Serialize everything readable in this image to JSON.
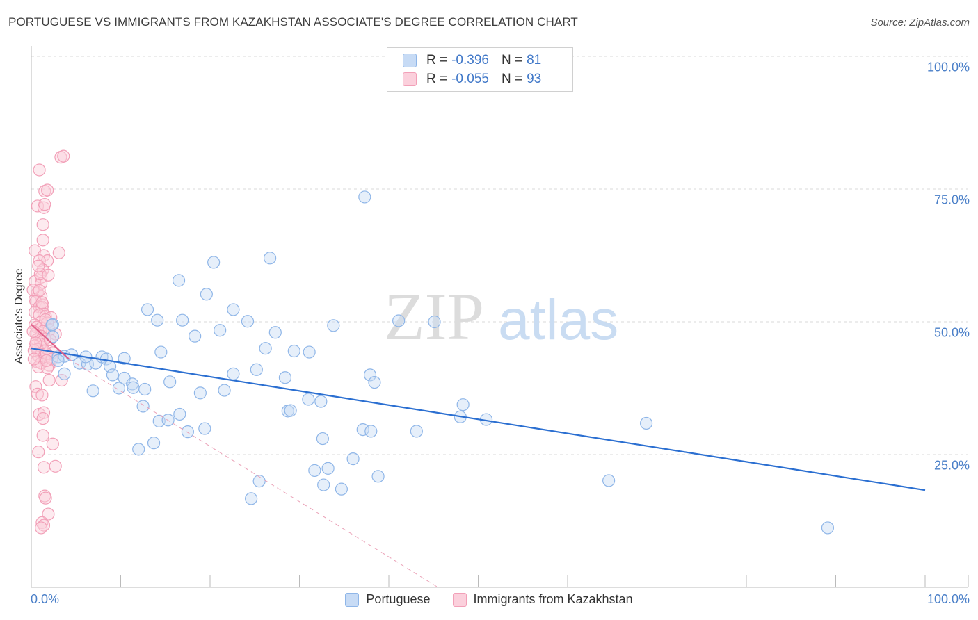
{
  "title": "PORTUGUESE VS IMMIGRANTS FROM KAZAKHSTAN ASSOCIATE'S DEGREE CORRELATION CHART",
  "source": "Source: ZipAtlas.com",
  "watermark": {
    "part1": "ZIP",
    "part2": "atlas"
  },
  "legend": {
    "rows": [
      {
        "r_label": "R =",
        "r_value": "-0.396",
        "n_label": "N =",
        "n_value": "81",
        "color": "#8fb6e8",
        "fill": "#c7dbf5"
      },
      {
        "r_label": "R =",
        "r_value": "-0.055",
        "n_label": "N =",
        "n_value": "93",
        "color": "#f2a0b8",
        "fill": "#fbd0dc"
      }
    ]
  },
  "bottom_legend": [
    {
      "label": "Portuguese",
      "color": "#8fb6e8",
      "fill": "#c7dbf5"
    },
    {
      "label": "Immigrants from Kazakhstan",
      "color": "#f2a0b8",
      "fill": "#fbd0dc"
    }
  ],
  "chart_data": {
    "type": "scatter",
    "title": "PORTUGUESE VS IMMIGRANTS FROM KAZAKHSTAN ASSOCIATE'S DEGREE CORRELATION CHART",
    "xlabel": "",
    "ylabel": "Associate's Degree",
    "xlim": [
      0,
      100
    ],
    "ylim": [
      0,
      100
    ],
    "x_tick_labels": [
      {
        "value": 0,
        "label": "0.0%"
      },
      {
        "value": 100,
        "label": "100.0%"
      }
    ],
    "y_tick_labels": [
      {
        "value": 100,
        "label": "100.0%"
      },
      {
        "value": 75,
        "label": "75.0%"
      },
      {
        "value": 50,
        "label": "50.0%"
      },
      {
        "value": 25,
        "label": "25.0%"
      }
    ],
    "grid": true,
    "series": [
      {
        "name": "Portuguese",
        "color": "#8fb6e8",
        "fill": "#c7dbf5",
        "trend": {
          "x1": 0,
          "y1": 45.0,
          "x2": 100,
          "y2": 18.3,
          "color": "#2b6fd1",
          "style": "solid"
        },
        "points": [
          [
            2.4,
            49.5
          ],
          [
            2.3,
            49.4
          ],
          [
            2.4,
            47.2
          ],
          [
            3.0,
            43.4
          ],
          [
            3.7,
            43.5
          ],
          [
            4.5,
            43.8
          ],
          [
            3.7,
            40.2
          ],
          [
            3.0,
            42.7
          ],
          [
            5.4,
            42.2
          ],
          [
            6.3,
            42.0
          ],
          [
            6.1,
            43.4
          ],
          [
            7.2,
            42.2
          ],
          [
            7.9,
            43.4
          ],
          [
            8.4,
            43.0
          ],
          [
            10.4,
            43.1
          ],
          [
            8.8,
            41.6
          ],
          [
            9.1,
            40.0
          ],
          [
            9.8,
            37.5
          ],
          [
            10.4,
            39.4
          ],
          [
            6.9,
            37.0
          ],
          [
            11.3,
            38.3
          ],
          [
            11.4,
            37.6
          ],
          [
            12.7,
            37.3
          ],
          [
            12.5,
            34.1
          ],
          [
            12.0,
            26.0
          ],
          [
            13.7,
            27.2
          ],
          [
            14.3,
            31.3
          ],
          [
            15.3,
            31.5
          ],
          [
            15.5,
            38.7
          ],
          [
            16.6,
            32.6
          ],
          [
            17.5,
            29.3
          ],
          [
            18.9,
            36.6
          ],
          [
            19.4,
            29.9
          ],
          [
            13.0,
            52.3
          ],
          [
            14.1,
            50.3
          ],
          [
            14.5,
            44.3
          ],
          [
            16.5,
            57.8
          ],
          [
            16.9,
            50.3
          ],
          [
            18.3,
            47.3
          ],
          [
            19.6,
            55.2
          ],
          [
            20.4,
            61.2
          ],
          [
            21.1,
            48.4
          ],
          [
            21.6,
            37.1
          ],
          [
            22.6,
            40.2
          ],
          [
            22.6,
            52.3
          ],
          [
            24.2,
            50.1
          ],
          [
            25.2,
            41.0
          ],
          [
            26.2,
            45.0
          ],
          [
            26.7,
            62.0
          ],
          [
            27.3,
            48.0
          ],
          [
            28.4,
            39.5
          ],
          [
            29.4,
            44.5
          ],
          [
            28.7,
            33.2
          ],
          [
            29.0,
            33.3
          ],
          [
            31.1,
            44.3
          ],
          [
            31.0,
            35.4
          ],
          [
            32.4,
            35.0
          ],
          [
            32.6,
            28.0
          ],
          [
            31.7,
            22.0
          ],
          [
            33.2,
            22.4
          ],
          [
            33.8,
            49.3
          ],
          [
            32.7,
            19.3
          ],
          [
            34.7,
            18.5
          ],
          [
            25.5,
            20.0
          ],
          [
            24.6,
            16.7
          ],
          [
            36.0,
            24.2
          ],
          [
            37.1,
            29.7
          ],
          [
            38.0,
            29.4
          ],
          [
            37.9,
            40.0
          ],
          [
            38.4,
            38.6
          ],
          [
            38.8,
            20.9
          ],
          [
            41.1,
            50.2
          ],
          [
            43.1,
            29.4
          ],
          [
            45.1,
            50.0
          ],
          [
            48.3,
            34.4
          ],
          [
            48.0,
            32.1
          ],
          [
            50.9,
            31.6
          ],
          [
            37.3,
            73.5
          ],
          [
            68.8,
            30.9
          ],
          [
            64.6,
            20.1
          ],
          [
            89.1,
            11.2
          ]
        ]
      },
      {
        "name": "Immigrants from Kazakhstan",
        "color": "#f2a0b8",
        "fill": "#fbd0dc",
        "trend": {
          "x1": 0,
          "y1": 49.5,
          "x2": 4.2,
          "y2": 43.0,
          "color": "#e0608a",
          "style": "solid"
        },
        "trend_extension": {
          "x1": 4.2,
          "x2": 45.5,
          "y2": 0,
          "color": "#eaa0b6",
          "style": "dashed"
        },
        "points": [
          [
            3.3,
            81.0
          ],
          [
            3.6,
            81.2
          ],
          [
            0.9,
            78.6
          ],
          [
            1.5,
            74.6
          ],
          [
            1.8,
            74.8
          ],
          [
            0.7,
            71.8
          ],
          [
            1.4,
            71.5
          ],
          [
            1.5,
            72.1
          ],
          [
            1.3,
            68.3
          ],
          [
            1.3,
            65.4
          ],
          [
            0.4,
            63.4
          ],
          [
            3.1,
            63.0
          ],
          [
            1.4,
            62.5
          ],
          [
            1.8,
            61.5
          ],
          [
            0.9,
            61.5
          ],
          [
            1.3,
            59.8
          ],
          [
            1.1,
            58.4
          ],
          [
            0.4,
            57.6
          ],
          [
            1.1,
            57.2
          ],
          [
            0.7,
            55.5
          ],
          [
            1.1,
            54.8
          ],
          [
            0.4,
            54.2
          ],
          [
            0.5,
            53.8
          ],
          [
            1.3,
            53.2
          ],
          [
            0.9,
            52.8
          ],
          [
            1.2,
            52.7
          ],
          [
            0.4,
            51.8
          ],
          [
            1.4,
            51.5
          ],
          [
            0.9,
            51.3
          ],
          [
            1.6,
            51.0
          ],
          [
            2.2,
            50.8
          ],
          [
            1.1,
            50.0
          ],
          [
            1.8,
            49.8
          ],
          [
            0.4,
            49.4
          ],
          [
            0.6,
            49.0
          ],
          [
            1.1,
            48.8
          ],
          [
            2.0,
            48.5
          ],
          [
            1.3,
            48.2
          ],
          [
            0.5,
            47.8
          ],
          [
            2.7,
            47.7
          ],
          [
            1.1,
            47.3
          ],
          [
            1.5,
            46.8
          ],
          [
            0.6,
            46.6
          ],
          [
            1.3,
            46.3
          ],
          [
            1.0,
            45.8
          ],
          [
            0.4,
            45.5
          ],
          [
            1.2,
            45.3
          ],
          [
            0.7,
            44.8
          ],
          [
            1.5,
            44.5
          ],
          [
            2.4,
            44.2
          ],
          [
            1.1,
            43.9
          ],
          [
            1.8,
            43.6
          ],
          [
            0.9,
            43.3
          ],
          [
            1.4,
            42.9
          ],
          [
            0.6,
            42.5
          ],
          [
            1.1,
            42.2
          ],
          [
            2.0,
            41.8
          ],
          [
            0.8,
            41.5
          ],
          [
            1.8,
            41.3
          ],
          [
            2.0,
            39.0
          ],
          [
            3.4,
            39.0
          ],
          [
            0.5,
            37.8
          ],
          [
            0.7,
            36.4
          ],
          [
            1.2,
            36.2
          ],
          [
            0.9,
            32.6
          ],
          [
            1.4,
            32.9
          ],
          [
            1.3,
            31.8
          ],
          [
            1.3,
            28.6
          ],
          [
            2.4,
            27.0
          ],
          [
            0.8,
            25.5
          ],
          [
            2.7,
            22.8
          ],
          [
            1.4,
            22.6
          ],
          [
            1.5,
            17.2
          ],
          [
            1.6,
            16.8
          ],
          [
            1.9,
            13.8
          ],
          [
            1.2,
            12.2
          ],
          [
            1.4,
            11.7
          ],
          [
            1.1,
            11.2
          ],
          [
            1.7,
            44.0
          ],
          [
            2.3,
            43.0
          ],
          [
            0.3,
            44.6
          ],
          [
            0.3,
            43.0
          ],
          [
            1.6,
            50.4
          ],
          [
            1.0,
            59.0
          ],
          [
            0.8,
            60.5
          ],
          [
            1.9,
            58.8
          ],
          [
            0.2,
            56.0
          ],
          [
            0.2,
            48.2
          ],
          [
            0.5,
            46.0
          ],
          [
            1.7,
            42.7
          ],
          [
            1.2,
            53.6
          ],
          [
            0.9,
            55.9
          ],
          [
            2.1,
            46.6
          ]
        ]
      }
    ]
  }
}
